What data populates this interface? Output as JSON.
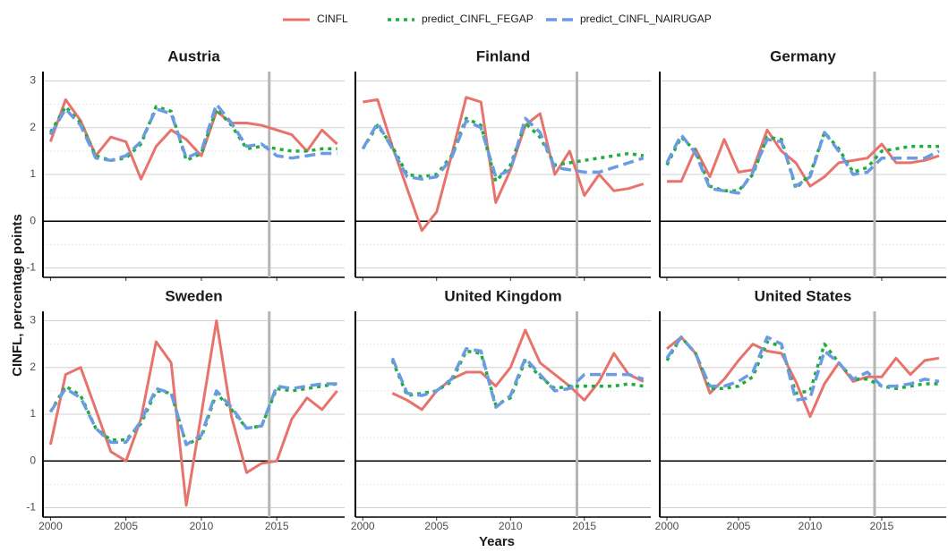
{
  "x_label": "Years",
  "y_label": "CINFL, percentage points",
  "chart_data": [
    {
      "type": "line",
      "title": "Austria",
      "x": [
        2000,
        2001,
        2002,
        2003,
        2004,
        2005,
        2006,
        2007,
        2008,
        2009,
        2010,
        2011,
        2012,
        2013,
        2014,
        2015,
        2016,
        2017,
        2018,
        2019
      ],
      "series": [
        {
          "name": "CINFL",
          "color": "#e8736c",
          "linestyle": "solid",
          "values": [
            1.7,
            2.6,
            2.15,
            1.4,
            1.8,
            1.7,
            0.9,
            1.6,
            1.95,
            1.75,
            1.4,
            2.35,
            2.1,
            2.1,
            2.05,
            1.95,
            1.85,
            1.5,
            1.95,
            1.65
          ]
        },
        {
          "name": "predict_CINFL_FEGAP",
          "color": "#1fae3b",
          "linestyle": "dotted",
          "values": [
            1.9,
            2.45,
            2.1,
            1.4,
            1.3,
            1.35,
            1.65,
            2.45,
            2.35,
            1.3,
            1.45,
            2.4,
            2.05,
            1.55,
            1.6,
            1.55,
            1.5,
            1.5,
            1.55,
            1.55
          ]
        },
        {
          "name": "predict_CINFL_NAIRUGAP",
          "color": "#6b9be3",
          "linestyle": "dashed",
          "values": [
            1.85,
            2.4,
            2.05,
            1.35,
            1.3,
            1.4,
            1.7,
            2.4,
            2.3,
            1.35,
            1.5,
            2.5,
            2.1,
            1.6,
            1.65,
            1.4,
            1.35,
            1.4,
            1.45,
            1.45
          ]
        }
      ],
      "xlim": [
        1999.5,
        2019.5
      ],
      "xticks": [
        2000,
        2005,
        2010,
        2015
      ],
      "ylim": [
        -1.2,
        3.2
      ],
      "yticks": [
        -1,
        0,
        1,
        2,
        3
      ],
      "vline": 2014.5,
      "grid": true
    },
    {
      "type": "line",
      "title": "Finland",
      "x": [
        2000,
        2001,
        2002,
        2003,
        2004,
        2005,
        2006,
        2007,
        2008,
        2009,
        2010,
        2011,
        2012,
        2013,
        2014,
        2015,
        2016,
        2017,
        2018,
        2019
      ],
      "series": [
        {
          "name": "CINFL",
          "color": "#e8736c",
          "linestyle": "solid",
          "values": [
            2.55,
            2.6,
            1.6,
            0.7,
            -0.2,
            0.2,
            1.4,
            2.65,
            2.55,
            0.4,
            1.1,
            2.05,
            2.3,
            1.0,
            1.5,
            0.55,
            1.0,
            0.65,
            0.7,
            0.8
          ]
        },
        {
          "name": "predict_CINFL_FEGAP",
          "color": "#1fae3b",
          "linestyle": "dotted",
          "values": [
            1.55,
            2.05,
            1.6,
            1.0,
            0.95,
            1.0,
            1.4,
            2.2,
            2.05,
            0.85,
            1.2,
            2.1,
            1.8,
            1.2,
            1.25,
            1.3,
            1.35,
            1.4,
            1.45,
            1.4
          ]
        },
        {
          "name": "predict_CINFL_NAIRUGAP",
          "color": "#6b9be3",
          "linestyle": "dashed",
          "values": [
            1.55,
            2.1,
            1.55,
            0.95,
            0.9,
            0.95,
            1.35,
            2.15,
            2.0,
            0.95,
            1.1,
            2.2,
            1.9,
            1.15,
            1.1,
            1.05,
            1.05,
            1.15,
            1.25,
            1.35
          ]
        }
      ],
      "xlim": [
        1999.5,
        2019.5
      ],
      "xticks": [
        2000,
        2005,
        2010,
        2015
      ],
      "ylim": [
        -1.2,
        3.2
      ],
      "yticks": [
        -1,
        0,
        1,
        2,
        3
      ],
      "vline": 2014.5,
      "grid": true
    },
    {
      "type": "line",
      "title": "Germany",
      "x": [
        2000,
        2001,
        2002,
        2003,
        2004,
        2005,
        2006,
        2007,
        2008,
        2009,
        2010,
        2011,
        2012,
        2013,
        2014,
        2015,
        2016,
        2017,
        2018,
        2019
      ],
      "series": [
        {
          "name": "CINFL",
          "color": "#e8736c",
          "linestyle": "solid",
          "values": [
            0.85,
            0.85,
            1.55,
            0.95,
            1.75,
            1.05,
            1.1,
            1.95,
            1.5,
            1.25,
            0.75,
            0.95,
            1.25,
            1.3,
            1.35,
            1.65,
            1.25,
            1.25,
            1.3,
            1.4
          ]
        },
        {
          "name": "predict_CINFL_FEGAP",
          "color": "#1fae3b",
          "linestyle": "dotted",
          "values": [
            1.2,
            1.8,
            1.5,
            0.75,
            0.65,
            0.65,
            1.0,
            1.8,
            1.75,
            0.7,
            1.0,
            1.9,
            1.55,
            1.05,
            1.15,
            1.5,
            1.55,
            1.6,
            1.6,
            1.6
          ]
        },
        {
          "name": "predict_CINFL_NAIRUGAP",
          "color": "#6b9be3",
          "linestyle": "dashed",
          "values": [
            1.25,
            1.85,
            1.45,
            0.7,
            0.65,
            0.6,
            1.05,
            1.75,
            1.7,
            0.75,
            0.95,
            1.9,
            1.5,
            1.0,
            1.05,
            1.35,
            1.35,
            1.35,
            1.35,
            1.5
          ]
        }
      ],
      "xlim": [
        1999.5,
        2019.5
      ],
      "xticks": [
        2000,
        2005,
        2010,
        2015
      ],
      "ylim": [
        -1.2,
        3.2
      ],
      "yticks": [
        -1,
        0,
        1,
        2,
        3
      ],
      "vline": 2014.5,
      "grid": true
    },
    {
      "type": "line",
      "title": "Sweden",
      "x": [
        2000,
        2001,
        2002,
        2003,
        2004,
        2005,
        2006,
        2007,
        2008,
        2009,
        2010,
        2011,
        2012,
        2013,
        2014,
        2015,
        2016,
        2017,
        2018,
        2019
      ],
      "series": [
        {
          "name": "CINFL",
          "color": "#e8736c",
          "linestyle": "solid",
          "values": [
            0.35,
            1.85,
            2.0,
            1.1,
            0.2,
            0.0,
            0.9,
            2.55,
            2.1,
            -0.95,
            1.0,
            3.0,
            0.95,
            -0.25,
            -0.05,
            0.0,
            0.9,
            1.35,
            1.1,
            1.5
          ]
        },
        {
          "name": "predict_CINFL_FEGAP",
          "color": "#1fae3b",
          "linestyle": "dotted",
          "values": [
            1.05,
            1.6,
            1.4,
            0.7,
            0.45,
            0.45,
            0.8,
            1.5,
            1.45,
            0.35,
            0.5,
            1.45,
            1.1,
            0.7,
            0.75,
            1.55,
            1.5,
            1.55,
            1.6,
            1.65
          ]
        },
        {
          "name": "predict_CINFL_NAIRUGAP",
          "color": "#6b9be3",
          "linestyle": "dashed",
          "values": [
            1.05,
            1.55,
            1.35,
            0.7,
            0.4,
            0.4,
            0.85,
            1.55,
            1.45,
            0.35,
            0.55,
            1.5,
            1.15,
            0.7,
            0.75,
            1.6,
            1.55,
            1.6,
            1.65,
            1.65
          ]
        }
      ],
      "xlim": [
        1999.5,
        2019.5
      ],
      "xticks": [
        2000,
        2005,
        2010,
        2015
      ],
      "ylim": [
        -1.2,
        3.2
      ],
      "yticks": [
        -1,
        0,
        1,
        2,
        3
      ],
      "vline": 2014.5,
      "grid": true
    },
    {
      "type": "line",
      "title": "United Kingdom",
      "x": [
        2000,
        2001,
        2002,
        2003,
        2004,
        2005,
        2006,
        2007,
        2008,
        2009,
        2010,
        2011,
        2012,
        2013,
        2014,
        2015,
        2016,
        2017,
        2018,
        2019
      ],
      "series": [
        {
          "name": "CINFL",
          "color": "#e8736c",
          "linestyle": "solid",
          "values": [
            null,
            null,
            1.45,
            1.3,
            1.1,
            1.5,
            1.75,
            1.9,
            1.9,
            1.6,
            2.0,
            2.8,
            2.1,
            1.85,
            1.6,
            1.3,
            1.7,
            2.3,
            1.85,
            1.7
          ]
        },
        {
          "name": "predict_CINFL_FEGAP",
          "color": "#1fae3b",
          "linestyle": "dotted",
          "values": [
            null,
            null,
            2.15,
            1.4,
            1.45,
            1.5,
            1.7,
            2.35,
            2.3,
            1.2,
            1.35,
            2.15,
            1.8,
            1.55,
            1.6,
            1.6,
            1.6,
            1.6,
            1.65,
            1.6
          ]
        },
        {
          "name": "predict_CINFL_NAIRUGAP",
          "color": "#6b9be3",
          "linestyle": "dashed",
          "values": [
            null,
            null,
            2.2,
            1.45,
            1.4,
            1.5,
            1.75,
            2.4,
            2.35,
            1.15,
            1.4,
            2.2,
            1.85,
            1.5,
            1.55,
            1.85,
            1.85,
            1.85,
            1.85,
            1.75
          ]
        }
      ],
      "xlim": [
        1999.5,
        2019.5
      ],
      "xticks": [
        2000,
        2005,
        2010,
        2015
      ],
      "ylim": [
        -1.2,
        3.2
      ],
      "yticks": [
        -1,
        0,
        1,
        2,
        3
      ],
      "vline": 2014.5,
      "grid": true
    },
    {
      "type": "line",
      "title": "United States",
      "x": [
        2000,
        2001,
        2002,
        2003,
        2004,
        2005,
        2006,
        2007,
        2008,
        2009,
        2010,
        2011,
        2012,
        2013,
        2014,
        2015,
        2016,
        2017,
        2018,
        2019
      ],
      "series": [
        {
          "name": "CINFL",
          "color": "#e8736c",
          "linestyle": "solid",
          "values": [
            2.4,
            2.65,
            2.3,
            1.45,
            1.75,
            2.15,
            2.5,
            2.35,
            2.3,
            1.7,
            0.95,
            1.65,
            2.1,
            1.7,
            1.8,
            1.8,
            2.2,
            1.85,
            2.15,
            2.2
          ]
        },
        {
          "name": "predict_CINFL_FEGAP",
          "color": "#1fae3b",
          "linestyle": "dotted",
          "values": [
            2.15,
            2.65,
            2.3,
            1.55,
            1.55,
            1.6,
            1.8,
            2.55,
            2.45,
            1.45,
            1.5,
            2.5,
            2.1,
            1.75,
            1.75,
            1.6,
            1.55,
            1.6,
            1.65,
            1.65
          ]
        },
        {
          "name": "predict_CINFL_NAIRUGAP",
          "color": "#6b9be3",
          "linestyle": "dashed",
          "values": [
            2.2,
            2.65,
            2.3,
            1.6,
            1.6,
            1.7,
            1.9,
            2.65,
            2.5,
            1.3,
            1.35,
            2.35,
            2.1,
            1.75,
            1.9,
            1.6,
            1.6,
            1.65,
            1.75,
            1.7
          ]
        }
      ],
      "xlim": [
        1999.5,
        2019.5
      ],
      "xticks": [
        2000,
        2005,
        2010,
        2015
      ],
      "ylim": [
        -1.2,
        3.2
      ],
      "yticks": [
        -1,
        0,
        1,
        2,
        3
      ],
      "vline": 2014.5,
      "grid": true
    }
  ]
}
